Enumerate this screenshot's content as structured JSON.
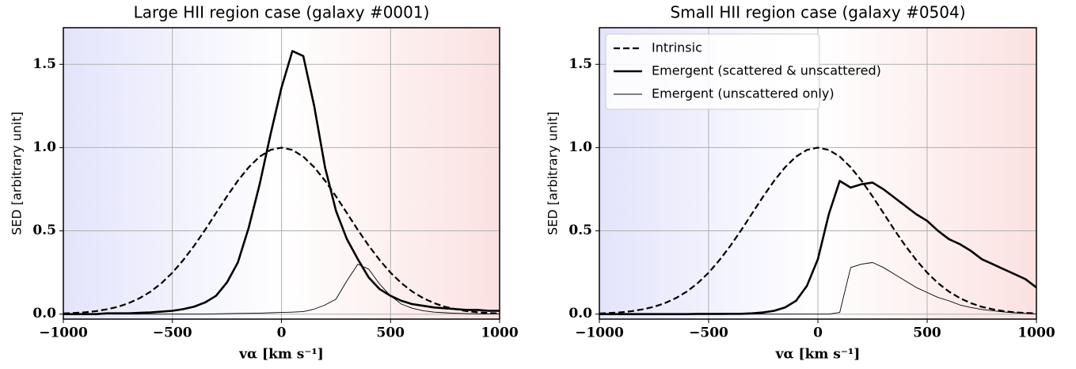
{
  "chart_data": [
    {
      "type": "line",
      "title": "Large HII region case (galaxy #0001)",
      "xlabel": "vα [km s⁻¹]",
      "ylabel": "SED [arbitrary unit]",
      "x": [
        -1000,
        -950,
        -900,
        -850,
        -800,
        -750,
        -700,
        -650,
        -600,
        -550,
        -500,
        -450,
        -400,
        -350,
        -300,
        -250,
        -200,
        -150,
        -100,
        -50,
        0,
        50,
        100,
        150,
        200,
        250,
        300,
        350,
        400,
        450,
        500,
        550,
        600,
        650,
        700,
        750,
        800,
        850,
        900,
        950,
        1000
      ],
      "series": [
        {
          "color": "#000000",
          "linestyle": "dashed",
          "linewidth": 2.2,
          "values": [
            0.004,
            0.007,
            0.011,
            0.018,
            0.029,
            0.044,
            0.066,
            0.096,
            0.135,
            0.186,
            0.249,
            0.325,
            0.411,
            0.506,
            0.607,
            0.707,
            0.801,
            0.882,
            0.946,
            0.986,
            1,
            0.986,
            0.946,
            0.882,
            0.801,
            0.707,
            0.607,
            0.506,
            0.411,
            0.325,
            0.249,
            0.186,
            0.135,
            0.096,
            0.066,
            0.044,
            0.029,
            0.018,
            0.011,
            0.007,
            0.004
          ]
        },
        {
          "color": "#000000",
          "linestyle": "solid",
          "linewidth": 2.6,
          "values": [
            0,
            0,
            0,
            0,
            0.005,
            0.005,
            0.005,
            0.008,
            0.01,
            0.015,
            0.02,
            0.03,
            0.045,
            0.07,
            0.11,
            0.19,
            0.31,
            0.52,
            0.78,
            1.08,
            1.36,
            1.58,
            1.55,
            1.25,
            0.88,
            0.62,
            0.45,
            0.33,
            0.22,
            0.15,
            0.11,
            0.08,
            0.06,
            0.05,
            0.04,
            0.035,
            0.03,
            0.025,
            0.025,
            0.02,
            0.02
          ]
        },
        {
          "color": "#000000",
          "linestyle": "solid",
          "linewidth": 0.9,
          "values": [
            0,
            0,
            0,
            0,
            0,
            0,
            0,
            0,
            0,
            0,
            0,
            0,
            0,
            0,
            0.002,
            0.003,
            0.004,
            0.005,
            0.006,
            0.008,
            0.01,
            0.012,
            0.015,
            0.03,
            0.055,
            0.09,
            0.2,
            0.3,
            0.27,
            0.18,
            0.11,
            0.06,
            0.035,
            0.02,
            0.012,
            0.008,
            0.005,
            0.003,
            0.002,
            0.001,
            0.001
          ]
        }
      ],
      "xlim": [
        -1000,
        1000
      ],
      "ylim": [
        -0.03,
        1.72
      ],
      "xticks": [
        {
          "value": -1000,
          "label": "−1000"
        },
        {
          "value": -500,
          "label": "−500"
        },
        {
          "value": 0,
          "label": "0"
        },
        500,
        1000
      ],
      "yticks": [
        {
          "value": 0,
          "label": "0.0"
        },
        0.5,
        {
          "value": 1,
          "label": "1.0"
        },
        1.5
      ],
      "grid": true
    },
    {
      "type": "line",
      "title": "Small HII region case (galaxy #0504)",
      "xlabel": "vα [km s⁻¹]",
      "ylabel": "SED [arbitrary unit]",
      "x": [
        -1000,
        -950,
        -900,
        -850,
        -800,
        -750,
        -700,
        -650,
        -600,
        -550,
        -500,
        -450,
        -400,
        -350,
        -300,
        -250,
        -200,
        -150,
        -100,
        -50,
        0,
        50,
        100,
        150,
        200,
        250,
        300,
        350,
        400,
        450,
        500,
        550,
        600,
        650,
        700,
        750,
        800,
        850,
        900,
        950,
        1000
      ],
      "series": [
        {
          "name": "Intrinsic",
          "color": "#000000",
          "linestyle": "dashed",
          "linewidth": 2.2,
          "values": [
            0.004,
            0.007,
            0.011,
            0.018,
            0.029,
            0.044,
            0.066,
            0.096,
            0.135,
            0.186,
            0.249,
            0.325,
            0.411,
            0.506,
            0.607,
            0.707,
            0.801,
            0.882,
            0.946,
            0.986,
            1,
            0.986,
            0.946,
            0.882,
            0.801,
            0.707,
            0.607,
            0.506,
            0.411,
            0.325,
            0.249,
            0.186,
            0.135,
            0.096,
            0.066,
            0.044,
            0.029,
            0.018,
            0.011,
            0.007,
            0.004
          ]
        },
        {
          "name": "Emergent (scattered & unscattered)",
          "color": "#000000",
          "linestyle": "solid",
          "linewidth": 2.6,
          "values": [
            0,
            0,
            0,
            0,
            0,
            0,
            0,
            0,
            0,
            0.001,
            0.001,
            0.001,
            0.002,
            0.002,
            0.005,
            0.01,
            0.02,
            0.04,
            0.08,
            0.17,
            0.33,
            0.6,
            0.8,
            0.76,
            0.78,
            0.79,
            0.75,
            0.7,
            0.65,
            0.6,
            0.56,
            0.5,
            0.45,
            0.42,
            0.38,
            0.33,
            0.3,
            0.27,
            0.24,
            0.21,
            0.16
          ]
        },
        {
          "name": "Emergent (unscattered only)",
          "color": "#000000",
          "linestyle": "solid",
          "linewidth": 0.9,
          "values": [
            0,
            0,
            0,
            0,
            0,
            0,
            0,
            0,
            0,
            0,
            0,
            0,
            0,
            0,
            0,
            0,
            0,
            0,
            0,
            0,
            0,
            0,
            0.01,
            0.28,
            0.3,
            0.31,
            0.28,
            0.24,
            0.2,
            0.16,
            0.13,
            0.1,
            0.08,
            0.055,
            0.04,
            0.028,
            0.02,
            0.013,
            0.008,
            0.004,
            0.002
          ]
        }
      ],
      "xlim": [
        -1000,
        1000
      ],
      "ylim": [
        -0.03,
        1.72
      ],
      "xticks": [
        {
          "value": -1000,
          "label": "−1000"
        },
        {
          "value": -500,
          "label": "−500"
        },
        {
          "value": 0,
          "label": "0"
        },
        500,
        1000
      ],
      "yticks": [
        {
          "value": 0,
          "label": "0.0"
        },
        0.5,
        {
          "value": 1,
          "label": "1.0"
        },
        1.5
      ],
      "grid": true,
      "legend": "upper left"
    }
  ]
}
